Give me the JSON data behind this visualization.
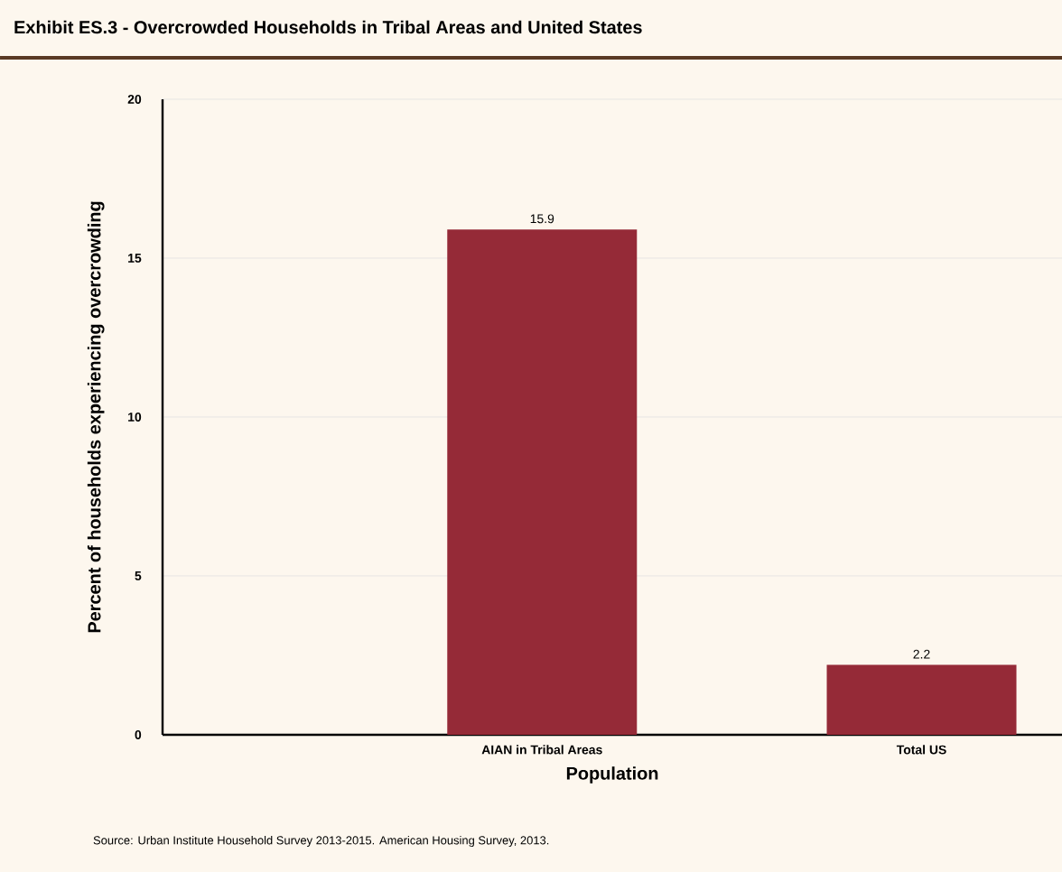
{
  "chart_data": {
    "type": "bar",
    "title": "Exhibit ES.3 - Overcrowded Households in Tribal Areas and United States",
    "categories": [
      "AIAN in Tribal Areas",
      "Total US"
    ],
    "values": [
      15.9,
      2.2
    ],
    "color": "#952a37",
    "xlabel": "Population",
    "ylabel": "Percent of households experiencing overcrowding",
    "ylim": [
      0,
      20
    ],
    "yticks": [
      0,
      5,
      10,
      15,
      20
    ],
    "grid": "y",
    "data_labels": true,
    "annotations": [
      "Source: Urban Institute Household Survey 2013-2015. American Housing Survey, 2013."
    ]
  }
}
